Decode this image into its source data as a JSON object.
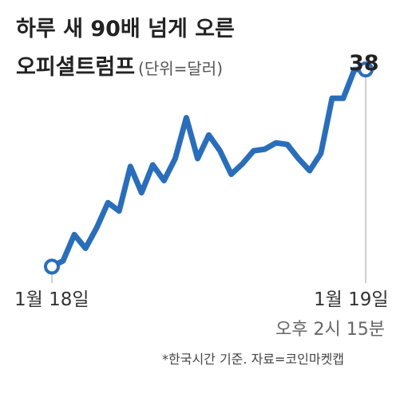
{
  "header": {
    "title_line1": "하루 새 90배 넘게 오른",
    "title_line2": "오피셜트럼프",
    "unit": "(단위=달러)"
  },
  "labels": {
    "start_date": "1월 18일",
    "end_date": "1월 19일",
    "end_time": "오후 2시 15분",
    "end_value": "38"
  },
  "footnote": "*한국시간 기준. 자료=코인마켓캡",
  "colors": {
    "line": "#2a6ebb",
    "marker_fill": "#ffffff",
    "guide": "#b0b0b0"
  },
  "chart_data": {
    "type": "line",
    "title": "하루 새 90배 넘게 오른 오피셜트럼프",
    "unit": "(단위=달러)",
    "x_start_label": "1월 18일",
    "x_end_label": "1월 19일",
    "x_end_sublabel": "오후 2시 15분",
    "ylim": [
      0,
      40
    ],
    "values": [
      0.4,
      1.5,
      6.5,
      3.9,
      7.8,
      12.6,
      11.0,
      19.5,
      14.5,
      19.8,
      16.8,
      21.0,
      28.8,
      21.0,
      25.5,
      22.5,
      18.0,
      20.0,
      22.5,
      22.8,
      24.0,
      23.7,
      21.0,
      18.7,
      22.0,
      32.5,
      32.5,
      38.0,
      38.0
    ],
    "end_value_label": "38",
    "grid": false,
    "legend": "none"
  }
}
